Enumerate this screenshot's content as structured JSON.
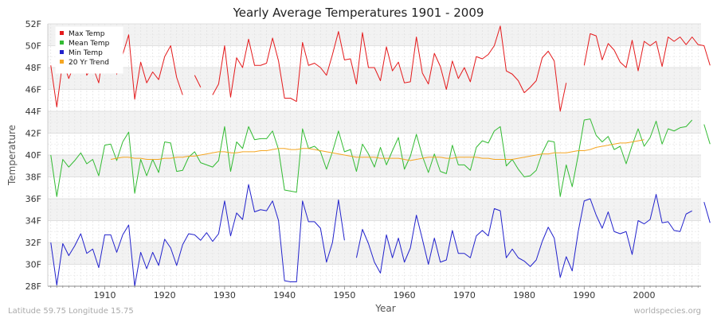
{
  "chart_data": {
    "type": "line",
    "title": "Yearly Average Temperatures 1901 - 2009",
    "xlabel": "Year",
    "ylabel": "Temperature",
    "xlim": [
      1900.5,
      2009.5
    ],
    "ylim": [
      28,
      52
    ],
    "x_ticks": [
      1910,
      1920,
      1930,
      1940,
      1950,
      1960,
      1970,
      1980,
      1990,
      2000
    ],
    "y_ticks": [
      28,
      30,
      32,
      34,
      36,
      38,
      40,
      42,
      44,
      46,
      48,
      50,
      52
    ],
    "y_tick_labels": [
      "28F",
      "30F",
      "32F",
      "34F",
      "36F",
      "38F",
      "40F",
      "42F",
      "44F",
      "46F",
      "48F",
      "50F",
      "52F"
    ],
    "grid": true,
    "legend_position": "top-left",
    "footer_left": "Latitude 59.75 Longitude 15.75",
    "footer_right": "worldspecies.org",
    "start_year": 1901,
    "series": [
      {
        "name": "Max Temp",
        "color": "#e41a1c",
        "values": [
          48.2,
          44.4,
          48.6,
          47.0,
          48.4,
          50.3,
          47.3,
          48.1,
          46.6,
          50.4,
          50.6,
          47.4,
          49.2,
          51.0,
          45.1,
          48.5,
          46.6,
          47.6,
          46.9,
          49.0,
          50.0,
          47.1,
          45.5,
          null,
          47.3,
          46.2,
          null,
          45.5,
          46.5,
          50.0,
          45.3,
          48.9,
          48.0,
          50.6,
          48.2,
          48.2,
          48.4,
          50.7,
          48.6,
          45.2,
          45.2,
          44.9,
          50.3,
          48.2,
          48.4,
          48.0,
          47.3,
          49.2,
          51.3,
          48.7,
          48.8,
          46.5,
          51.2,
          48.0,
          48.0,
          46.8,
          49.9,
          47.7,
          48.5,
          46.6,
          46.7,
          50.8,
          47.5,
          46.5,
          49.3,
          48.1,
          46.0,
          48.6,
          47.0,
          48.0,
          46.7,
          49.0,
          48.8,
          49.2,
          50.0,
          51.8,
          47.7,
          47.4,
          46.8,
          45.7,
          46.2,
          46.8,
          48.9,
          49.5,
          48.6,
          44.0,
          46.6,
          null,
          null,
          48.2,
          51.1,
          50.9,
          48.7,
          50.2,
          49.6,
          48.5,
          48.0,
          50.5,
          47.7,
          50.4,
          50.0,
          50.4,
          48.1,
          50.8,
          50.4,
          50.8,
          50.1,
          50.8,
          50.1,
          50.0,
          48.2
        ]
      },
      {
        "name": "Mean Temp",
        "color": "#33bb33",
        "values": [
          40.0,
          36.2,
          39.6,
          38.9,
          39.5,
          40.2,
          39.2,
          39.6,
          38.1,
          40.9,
          41.0,
          39.5,
          41.2,
          42.1,
          36.5,
          39.6,
          38.1,
          39.6,
          38.4,
          41.2,
          41.1,
          38.5,
          38.6,
          39.8,
          40.3,
          39.3,
          39.1,
          38.9,
          39.5,
          42.6,
          38.5,
          41.2,
          40.6,
          42.6,
          41.4,
          41.5,
          41.5,
          42.2,
          40.5,
          36.8,
          36.7,
          36.6,
          42.4,
          40.6,
          40.8,
          40.3,
          38.7,
          40.3,
          42.2,
          40.3,
          40.5,
          38.5,
          41.0,
          40.1,
          38.9,
          40.7,
          39.1,
          40.4,
          41.6,
          38.7,
          39.9,
          41.9,
          39.9,
          38.4,
          40.1,
          38.5,
          38.3,
          40.9,
          39.1,
          39.1,
          38.6,
          40.7,
          41.3,
          41.1,
          42.2,
          42.6,
          39.0,
          39.6,
          38.7,
          38.0,
          38.1,
          38.6,
          40.2,
          41.3,
          41.2,
          36.2,
          39.1,
          37.1,
          40.0,
          43.2,
          43.3,
          41.8,
          41.2,
          41.7,
          40.5,
          40.8,
          39.2,
          40.9,
          42.4,
          40.8,
          41.6,
          43.1,
          41.0,
          42.4,
          42.2,
          42.5,
          42.6,
          43.2,
          null,
          42.8,
          41.0
        ]
      },
      {
        "name": "Min Temp",
        "color": "#2222cc",
        "values": [
          32.0,
          28.1,
          31.9,
          30.8,
          31.7,
          32.8,
          31.0,
          31.4,
          29.7,
          32.7,
          32.7,
          31.1,
          32.7,
          33.6,
          28.0,
          31.1,
          29.6,
          31.1,
          29.9,
          32.3,
          31.5,
          29.9,
          31.8,
          32.8,
          32.7,
          32.2,
          32.9,
          32.1,
          32.8,
          35.8,
          32.6,
          34.7,
          34.1,
          37.3,
          34.8,
          35.0,
          34.9,
          35.8,
          34.0,
          28.5,
          28.4,
          28.4,
          35.8,
          33.9,
          33.9,
          33.3,
          30.2,
          32.0,
          35.9,
          32.2,
          null,
          30.6,
          33.2,
          31.9,
          30.2,
          29.2,
          32.7,
          30.6,
          32.4,
          30.2,
          31.5,
          34.5,
          32.3,
          30.0,
          32.4,
          30.2,
          30.4,
          33.1,
          31.0,
          31.0,
          30.6,
          32.6,
          33.1,
          32.6,
          35.1,
          34.9,
          30.6,
          31.4,
          30.6,
          30.3,
          29.8,
          30.4,
          32.1,
          33.4,
          32.4,
          28.8,
          30.7,
          29.4,
          33.0,
          35.8,
          36.0,
          34.5,
          33.3,
          34.8,
          33.0,
          32.8,
          33.0,
          30.9,
          34.0,
          33.7,
          34.1,
          36.4,
          33.8,
          33.9,
          33.1,
          33.0,
          34.6,
          34.9,
          null,
          35.7,
          33.8
        ]
      },
      {
        "name": "20 Yr Trend",
        "color": "#f5a623",
        "values": [
          null,
          null,
          null,
          null,
          null,
          null,
          null,
          null,
          null,
          null,
          39.6,
          39.7,
          39.8,
          39.8,
          39.7,
          39.7,
          39.6,
          39.6,
          39.6,
          39.7,
          39.7,
          39.8,
          39.8,
          39.9,
          39.9,
          40.0,
          40.1,
          40.2,
          40.3,
          40.3,
          40.2,
          40.2,
          40.3,
          40.3,
          40.3,
          40.4,
          40.4,
          40.5,
          40.6,
          40.6,
          40.5,
          40.5,
          40.6,
          40.6,
          40.5,
          40.4,
          40.3,
          40.2,
          40.1,
          40.0,
          39.9,
          39.8,
          39.8,
          39.8,
          39.8,
          39.7,
          39.7,
          39.7,
          39.7,
          39.6,
          39.5,
          39.6,
          39.7,
          39.8,
          39.8,
          39.8,
          39.7,
          39.7,
          39.8,
          39.8,
          39.8,
          39.8,
          39.7,
          39.7,
          39.6,
          39.6,
          39.6,
          39.6,
          39.7,
          39.8,
          39.9,
          40.0,
          40.1,
          40.1,
          40.2,
          40.2,
          40.2,
          40.3,
          40.4,
          40.4,
          40.5,
          40.7,
          40.8,
          40.9,
          41.0,
          41.1,
          41.1,
          41.2,
          41.3,
          41.4,
          null,
          null,
          null,
          null,
          null,
          null,
          null,
          null,
          null,
          null,
          null
        ]
      }
    ]
  }
}
